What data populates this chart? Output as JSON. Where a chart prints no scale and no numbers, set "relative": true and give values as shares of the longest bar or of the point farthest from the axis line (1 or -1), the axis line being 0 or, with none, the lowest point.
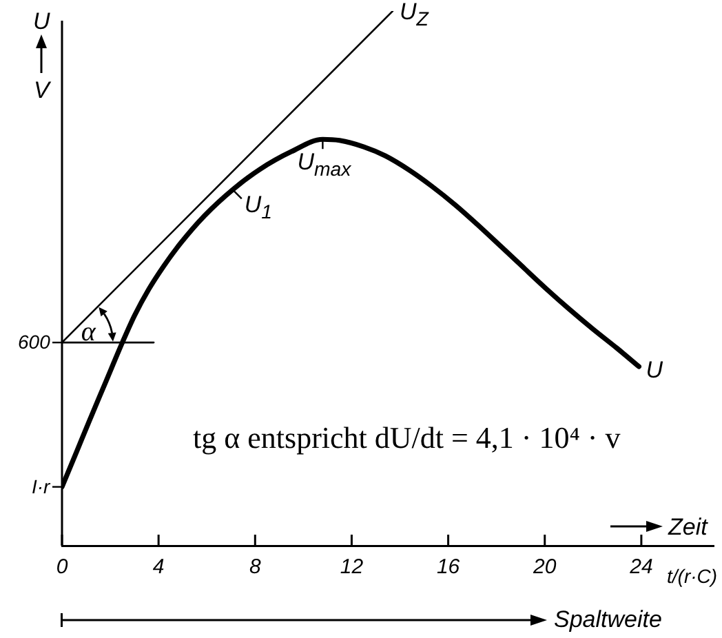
{
  "chart_data": {
    "type": "line",
    "relative": true,
    "ylabel": "U\nV",
    "xlabel": "t/(r·C)",
    "xlim": [
      0,
      27
    ],
    "xticks": [
      0,
      4,
      8,
      12,
      16,
      20,
      24
    ],
    "series": [
      {
        "name": "U",
        "color": "#000000",
        "x": [
          0,
          0.6,
          1.1,
          1.8,
          2.5,
          3.0,
          3.6,
          4.2,
          4.9,
          5.9,
          7.1,
          8.2,
          9.5,
          10.8,
          11.5,
          12.5,
          13.4,
          14.4,
          15.3,
          16.3,
          17.2,
          18.2,
          19.1,
          20.1,
          21.0,
          22.0,
          23.0,
          23.9
        ],
        "values": [
          0.11,
          0.175,
          0.23,
          0.305,
          0.38,
          0.43,
          0.48,
          0.522,
          0.565,
          0.617,
          0.667,
          0.704,
          0.737,
          0.76,
          0.758,
          0.746,
          0.729,
          0.702,
          0.673,
          0.637,
          0.601,
          0.559,
          0.521,
          0.479,
          0.443,
          0.405,
          0.369,
          0.335
        ]
      },
      {
        "name": "U$_{Z}$",
        "color": "#000000",
        "x": [
          0,
          13.7
        ],
        "values": [
          0.38,
          1
        ]
      },
      {
        "color": "#000000",
        "x": [
          0,
          3.8
        ],
        "values": [
          0.38,
          0.38
        ]
      }
    ],
    "annotations": [
      {
        "text": "600",
        "x": 0,
        "y": 0.38
      },
      {
        "text": "I·r",
        "x": 0,
        "y": 0.11
      },
      {
        "text": "U$_{1}$",
        "x": 7.1,
        "y": 0.667
      },
      {
        "text": "U$_{max}$",
        "x": 10.8,
        "y": 0.76
      },
      "α",
      "tg α entspricht dU/dt = 4,1 · 10⁴ · v",
      "Zeit",
      "Spaltweite"
    ],
    "marker": "none",
    "line_style": "solid",
    "legend": false
  }
}
